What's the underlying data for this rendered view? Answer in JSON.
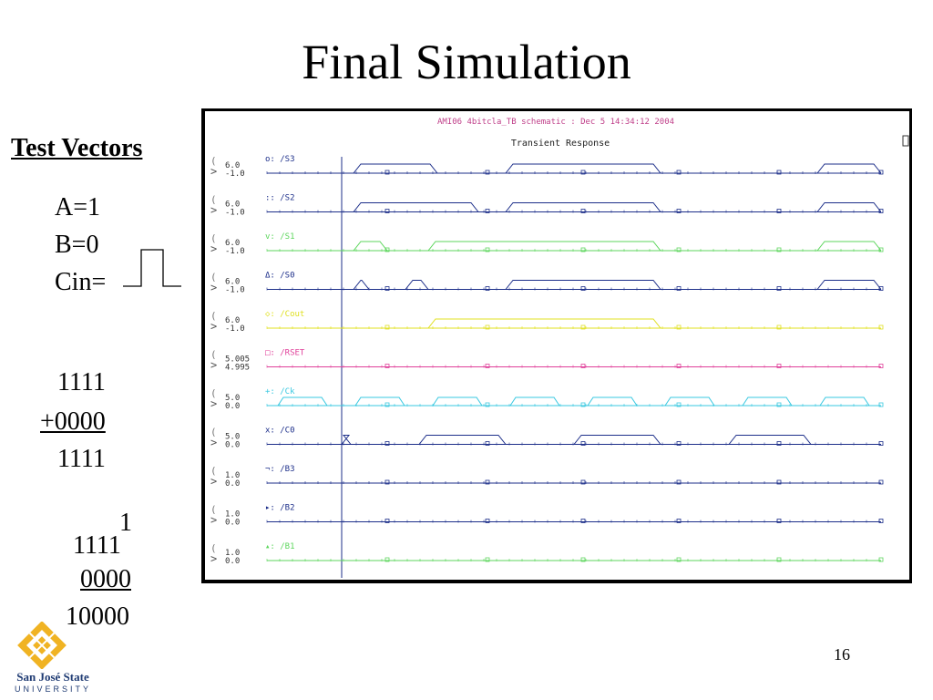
{
  "slide": {
    "title": "Final Simulation",
    "page_number": "16"
  },
  "test_vectors": {
    "heading": "Test Vectors",
    "a": "A=1",
    "b": "B=0",
    "cin": "Cin="
  },
  "arithmetic": {
    "line1": "1111",
    "line2": "+0000",
    "line3": "1111",
    "carry": "1",
    "line4": "1111",
    "line5": "0000",
    "result": "10000"
  },
  "simulation": {
    "header": "AMI06 4bitcla_TB schematic : Dec  5 14:34:12 2004",
    "subtitle": "Transient Response",
    "colors": {
      "navy": "#1d2f8a",
      "green": "#5cd65c",
      "yellow": "#e0e020",
      "pink": "#e0409a",
      "cyan": "#38c8e0",
      "header": "#c0408a"
    },
    "signals": [
      {
        "name": "/S3",
        "prefix": "o:",
        "top": "6.0",
        "bottom": "-1.0",
        "color": "navy"
      },
      {
        "name": "/S2",
        "prefix": "::",
        "top": "6.0",
        "bottom": "-1.0",
        "color": "navy"
      },
      {
        "name": "/S1",
        "prefix": "v:",
        "top": "6.0",
        "bottom": "-1.0",
        "color": "green"
      },
      {
        "name": "/S0",
        "prefix": "Δ:",
        "top": "6.0",
        "bottom": "-1.0",
        "color": "navy"
      },
      {
        "name": "/Cout",
        "prefix": "◇:",
        "top": "6.0",
        "bottom": "-1.0",
        "color": "yellow"
      },
      {
        "name": "/RSET",
        "prefix": "□:",
        "top": "5.005",
        "bottom": "4.995",
        "color": "pink"
      },
      {
        "name": "/Ck",
        "prefix": "+:",
        "top": "5.0",
        "bottom": "0.0",
        "color": "cyan"
      },
      {
        "name": "/C0",
        "prefix": "x:",
        "top": "5.0",
        "bottom": "0.0",
        "color": "navy"
      },
      {
        "name": "/B3",
        "prefix": "¬:",
        "top": "1.0",
        "bottom": "0.0",
        "color": "navy"
      },
      {
        "name": "/B2",
        "prefix": "▸:",
        "top": "1.0",
        "bottom": "0.0",
        "color": "navy"
      },
      {
        "name": "/B1",
        "prefix": "▴:",
        "top": "1.0",
        "bottom": "0.0",
        "color": "green"
      }
    ]
  },
  "logo": {
    "name": "San José State",
    "subtitle": "UNIVERSITY"
  }
}
